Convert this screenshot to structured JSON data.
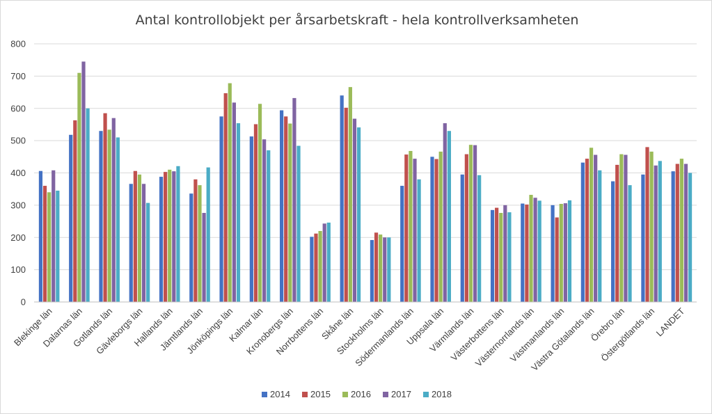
{
  "chart_data": {
    "type": "bar",
    "title": "Antal kontrollobjekt per årsarbetskraft - hela kontrollverksamheten",
    "xlabel": "",
    "ylabel": "",
    "ylim": [
      0,
      800
    ],
    "yticks": [
      0,
      100,
      200,
      300,
      400,
      500,
      600,
      700,
      800
    ],
    "grid": true,
    "legend_position": "bottom",
    "categories": [
      "Blekinge län",
      "Dalarnas län",
      "Gotlands län",
      "Gävleborgs län",
      "Hallands län",
      "Jämtlands län",
      "Jönköpings län",
      "Kalmar län",
      "Kronobergs län",
      "Norrbottens län",
      "Skåne län",
      "Stockholms län",
      "Södermanlands län",
      "Uppsala län",
      "Värmlands län",
      "Västerbottens län",
      "Västernorrlands län",
      "Västmanlands län",
      "Västra Götalands län",
      "Örebro län",
      "Östergötlands län",
      "LANDET"
    ],
    "series": [
      {
        "name": "2014",
        "color": "#4472c4",
        "values": [
          406,
          518,
          530,
          366,
          388,
          336,
          575,
          513,
          594,
          202,
          640,
          192,
          360,
          450,
          395,
          285,
          305,
          300,
          432,
          374,
          395,
          405
        ]
      },
      {
        "name": "2015",
        "color": "#c0504d",
        "values": [
          360,
          563,
          585,
          406,
          403,
          380,
          647,
          551,
          575,
          212,
          602,
          215,
          457,
          443,
          458,
          292,
          302,
          262,
          444,
          425,
          480,
          428
        ]
      },
      {
        "name": "2016",
        "color": "#9bbb59",
        "values": [
          340,
          710,
          534,
          395,
          410,
          362,
          678,
          614,
          553,
          220,
          666,
          209,
          468,
          466,
          487,
          276,
          332,
          304,
          478,
          458,
          466,
          444
        ]
      },
      {
        "name": "2017",
        "color": "#8064a2",
        "values": [
          408,
          745,
          570,
          366,
          405,
          276,
          618,
          504,
          632,
          243,
          568,
          200,
          444,
          554,
          486,
          300,
          323,
          306,
          456,
          456,
          423,
          428
        ]
      },
      {
        "name": "2018",
        "color": "#4bacc6",
        "values": [
          345,
          600,
          510,
          307,
          421,
          417,
          554,
          470,
          484,
          246,
          541,
          200,
          380,
          530,
          393,
          278,
          314,
          315,
          408,
          362,
          437,
          400
        ]
      }
    ]
  }
}
